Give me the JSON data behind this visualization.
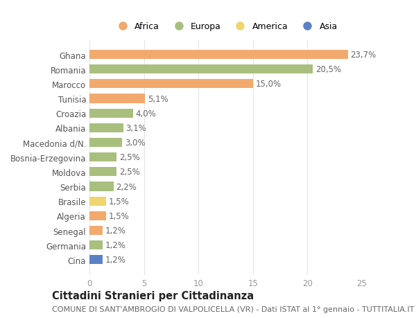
{
  "countries": [
    "Ghana",
    "Romania",
    "Marocco",
    "Tunisia",
    "Croazia",
    "Albania",
    "Macedonia d/N.",
    "Bosnia-Erzegovina",
    "Moldova",
    "Serbia",
    "Brasile",
    "Algeria",
    "Senegal",
    "Germania",
    "Cina"
  ],
  "values": [
    23.7,
    20.5,
    15.0,
    5.1,
    4.0,
    3.1,
    3.0,
    2.5,
    2.5,
    2.2,
    1.5,
    1.5,
    1.2,
    1.2,
    1.2
  ],
  "labels": [
    "23,7%",
    "20,5%",
    "15,0%",
    "5,1%",
    "4,0%",
    "3,1%",
    "3,0%",
    "2,5%",
    "2,5%",
    "2,2%",
    "1,5%",
    "1,5%",
    "1,2%",
    "1,2%",
    "1,2%"
  ],
  "continents": [
    "Africa",
    "Europa",
    "Africa",
    "Africa",
    "Europa",
    "Europa",
    "Europa",
    "Europa",
    "Europa",
    "Europa",
    "America",
    "Africa",
    "Africa",
    "Europa",
    "Asia"
  ],
  "colors": {
    "Africa": "#F2A96E",
    "Europa": "#A8BF7E",
    "America": "#EDD670",
    "Asia": "#5B80C8"
  },
  "legend_order": [
    "Africa",
    "Europa",
    "America",
    "Asia"
  ],
  "legend_colors": [
    "#F2A96E",
    "#A8BF7E",
    "#EDD670",
    "#5B80C8"
  ],
  "xlim": [
    0,
    25
  ],
  "xticks": [
    0,
    5,
    10,
    15,
    20,
    25
  ],
  "title": "Cittadini Stranieri per Cittadinanza",
  "subtitle": "COMUNE DI SANT'AMBROGIO DI VALPOLICELLA (VR) - Dati ISTAT al 1° gennaio - TUTTITALIA.IT",
  "bg_color": "#FFFFFF",
  "grid_color": "#E5E5E5",
  "bar_height": 0.62,
  "label_fontsize": 8.5,
  "tick_fontsize": 8.5,
  "title_fontsize": 10.5,
  "subtitle_fontsize": 8
}
